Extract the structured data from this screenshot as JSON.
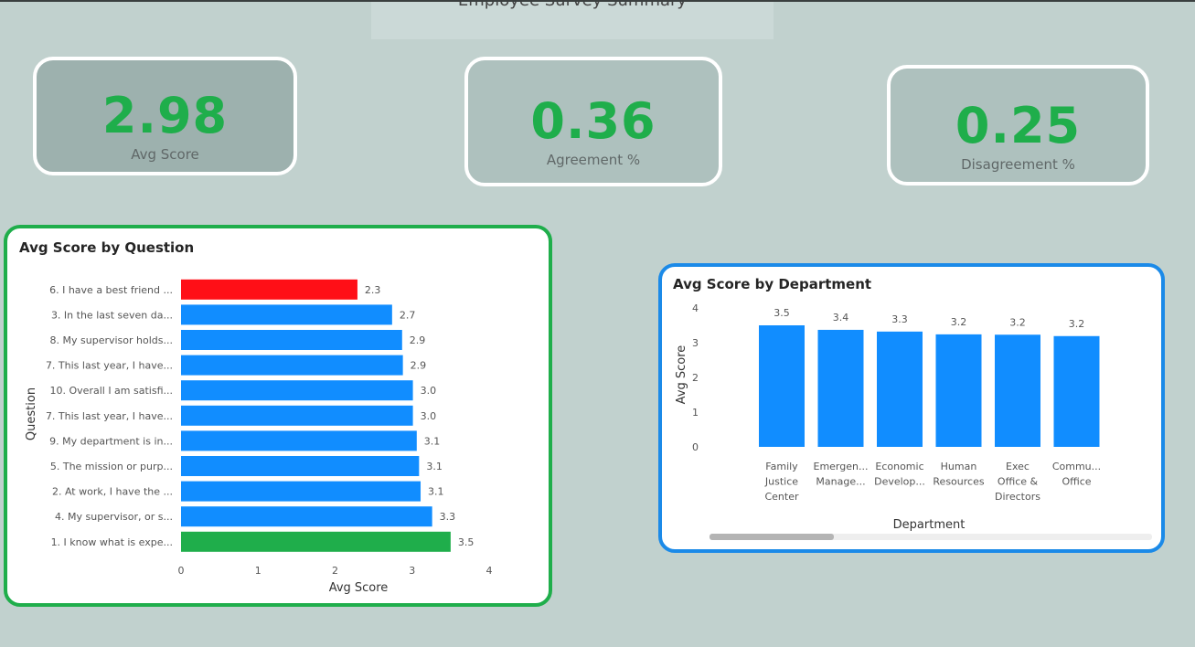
{
  "report": {
    "title": "Employee Survey Summary"
  },
  "kpis": [
    {
      "value": "2.98",
      "label": "Avg Score"
    },
    {
      "value": "0.36",
      "label": "Agreement %"
    },
    {
      "value": "0.25",
      "label": "Disagreement %"
    }
  ],
  "colors": {
    "accent_green": "#1fae4b",
    "bar_blue": "#118dff",
    "bar_red": "#ff0f17",
    "bar_green": "#1fae4b",
    "card_border_green": "#1fae4b",
    "card_border_blue": "#1b8ae8"
  },
  "chart_data": [
    {
      "type": "bar",
      "orientation": "horizontal",
      "title": "Avg Score by Question",
      "xlabel": "Avg Score",
      "ylabel": "Question",
      "xlim": [
        0,
        4
      ],
      "xticks": [
        "0",
        "1",
        "2",
        "3",
        "4"
      ],
      "categories": [
        "6. I have a best friend ...",
        "3. In the last seven da...",
        "8. My supervisor holds...",
        "7. This last year, I have...",
        "10. Overall I am satisfi...",
        "7. This last year, I have...",
        "9. My department is in...",
        "5. The mission or purp...",
        "2. At work, I have the ...",
        "4. My supervisor, or s...",
        "1. I know what is expe..."
      ],
      "values": [
        2.29,
        2.74,
        2.87,
        2.88,
        3.01,
        3.01,
        3.06,
        3.09,
        3.11,
        3.26,
        3.5
      ],
      "data_labels": [
        "2.3",
        "2.7",
        "2.9",
        "2.9",
        "3.0",
        "3.0",
        "3.1",
        "3.1",
        "3.1",
        "3.3",
        "3.5"
      ],
      "bar_colors": [
        "red",
        "blue",
        "blue",
        "blue",
        "blue",
        "blue",
        "blue",
        "blue",
        "blue",
        "blue",
        "green"
      ]
    },
    {
      "type": "bar",
      "orientation": "vertical",
      "title": "Avg Score by Department",
      "xlabel": "Department",
      "ylabel": "Avg Score",
      "ylim": [
        0,
        4
      ],
      "yticks": [
        "0",
        "1",
        "2",
        "3",
        "4"
      ],
      "categories": [
        [
          "Family",
          "Justice",
          "Center"
        ],
        [
          "Emergen...",
          "Manage..."
        ],
        [
          "Economic",
          "Develop..."
        ],
        [
          "Human",
          "Resources"
        ],
        [
          "Exec",
          "Office &",
          "Directors"
        ],
        [
          "Commu...",
          "Office"
        ]
      ],
      "values": [
        3.5,
        3.37,
        3.32,
        3.24,
        3.23,
        3.19
      ],
      "data_labels": [
        "3.5",
        "3.4",
        "3.3",
        "3.2",
        "3.2",
        "3.2"
      ]
    }
  ]
}
